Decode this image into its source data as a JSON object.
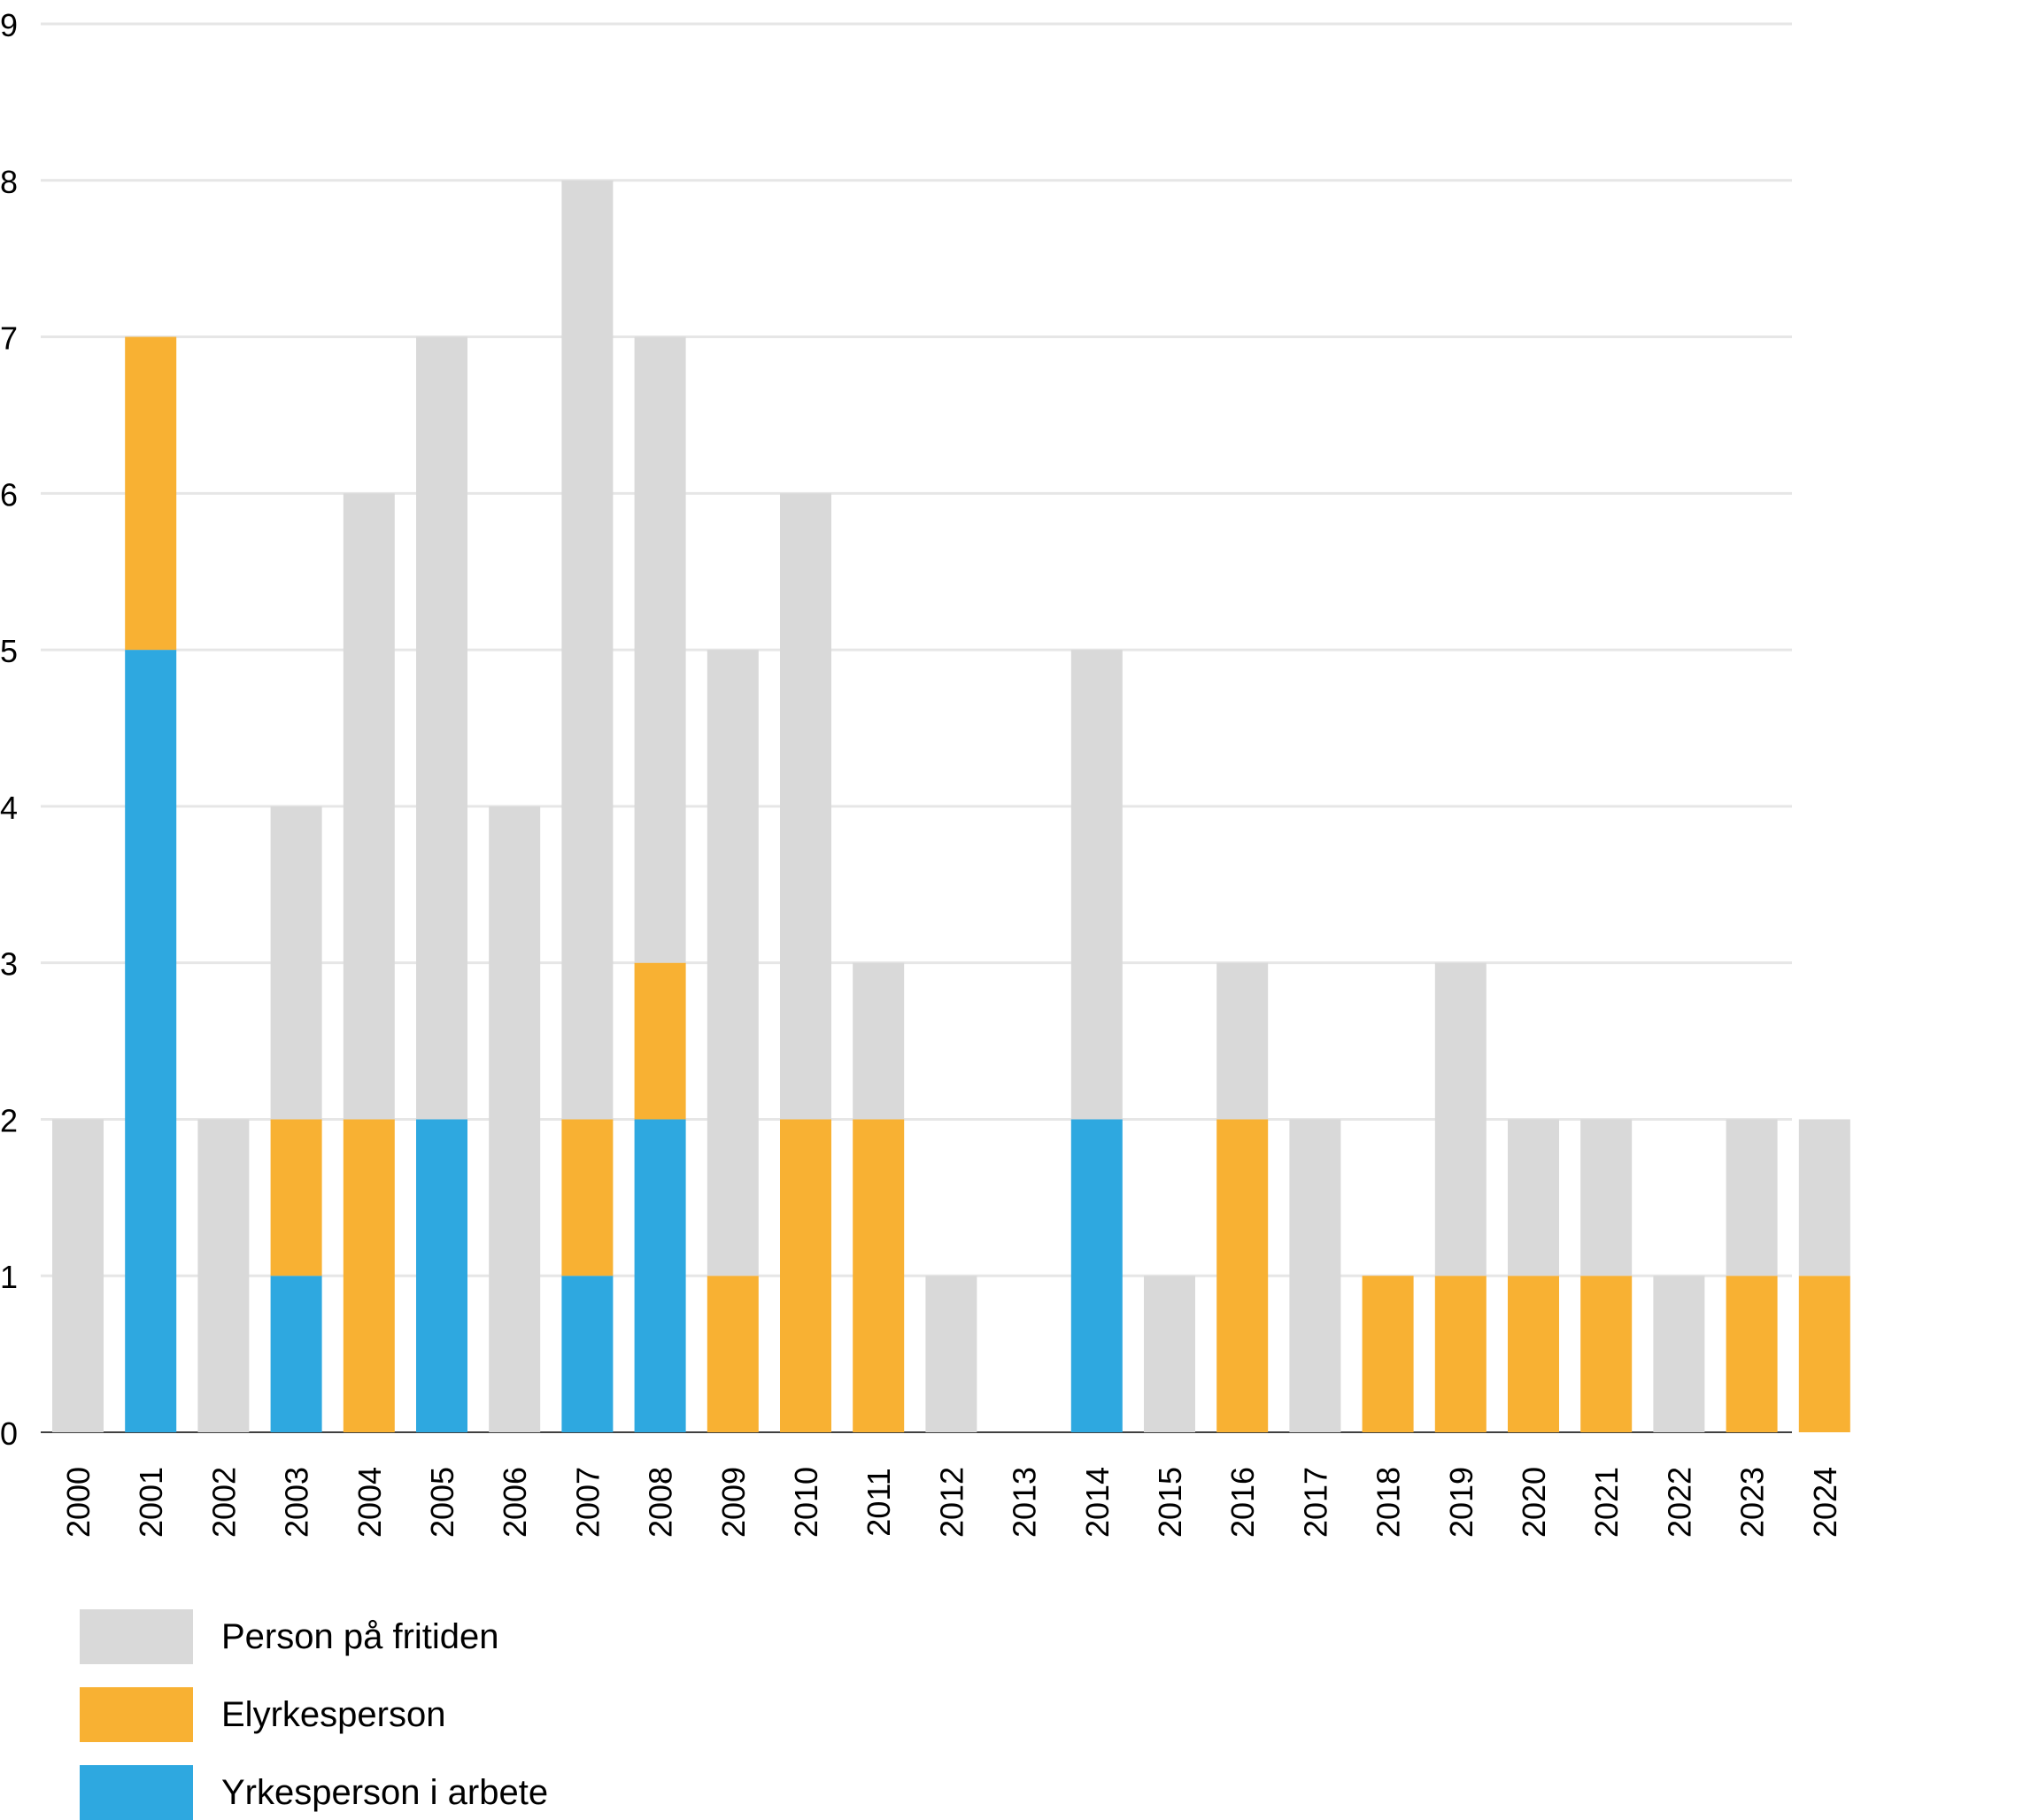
{
  "chart_data": {
    "type": "bar",
    "stacked": true,
    "categories": [
      "2000",
      "2001",
      "2002",
      "2003",
      "2004",
      "2005",
      "2006",
      "2007",
      "2008",
      "2009",
      "2010",
      "2011",
      "2012",
      "2013",
      "2014",
      "2015",
      "2016",
      "2017",
      "2018",
      "2019",
      "2020",
      "2021",
      "2022",
      "2023",
      "2024"
    ],
    "series": [
      {
        "name": "Yrkesperson i arbete",
        "color": "#2ea8e0",
        "values": [
          0,
          5,
          0,
          1,
          0,
          2,
          0,
          1,
          2,
          0,
          0,
          0,
          0,
          0,
          2,
          0,
          0,
          0,
          0,
          0,
          0,
          0,
          0,
          0,
          0
        ]
      },
      {
        "name": "Elyrkesperson",
        "color": "#f8b133",
        "values": [
          0,
          2,
          0,
          1,
          2,
          0,
          0,
          1,
          1,
          1,
          2,
          2,
          0,
          0,
          0,
          0,
          2,
          0,
          1,
          1,
          1,
          1,
          0,
          1,
          1
        ]
      },
      {
        "name": "Person på fritiden",
        "color": "#d9d9d9",
        "values": [
          2,
          0,
          2,
          2,
          4,
          5,
          4,
          6,
          4,
          4,
          4,
          1,
          1,
          0,
          3,
          1,
          1,
          2,
          0,
          2,
          1,
          1,
          1,
          1,
          1
        ]
      }
    ],
    "ylim": [
      0,
      9
    ],
    "yticks": [
      "0",
      "1",
      "2",
      "3",
      "4",
      "5",
      "6",
      "7",
      "8",
      "9"
    ],
    "grid": true,
    "legend_position": "bottom-left",
    "title": "",
    "xlabel": "",
    "ylabel": ""
  },
  "legend": {
    "items": [
      {
        "label": "Person på fritiden",
        "color": "#d9d9d9"
      },
      {
        "label": "Elyrkesperson",
        "color": "#f8b133"
      },
      {
        "label": "Yrkesperson i arbete",
        "color": "#2ea8e0"
      }
    ]
  }
}
